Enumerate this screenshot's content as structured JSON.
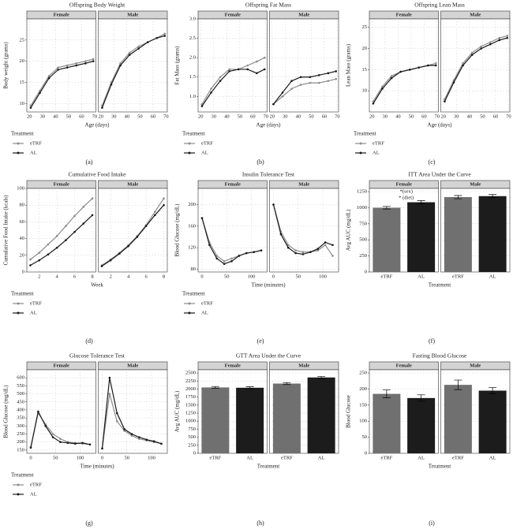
{
  "chart_data": [
    {
      "type": "line",
      "title": "Offspring Body Weight",
      "label": "(a)",
      "xlabel": "Age (days)",
      "ylabel": "Body weight (grams)",
      "legend_title": "Treatment",
      "series": [
        {
          "name": "eTRF",
          "color": "#8c8c8c"
        },
        {
          "name": "AL",
          "color": "#1a1a1a"
        }
      ],
      "x": [
        21,
        28,
        35,
        42,
        49,
        56,
        63,
        69
      ],
      "xlim": [
        18,
        71
      ],
      "xticks": [
        20,
        30,
        40,
        50,
        60,
        70
      ],
      "ylim": [
        8,
        30
      ],
      "yticks": [
        10,
        15,
        20,
        25
      ],
      "facets": [
        {
          "name": "Female",
          "values": [
            [
              9.5,
              13,
              16.5,
              18.5,
              19,
              19.5,
              20,
              20.5
            ],
            [
              9,
              12.5,
              16,
              18,
              18.5,
              19,
              19.5,
              20
            ]
          ]
        },
        {
          "name": "Male",
          "values": [
            [
              9.5,
              15,
              19.5,
              22,
              23.5,
              24.5,
              25.5,
              26.5
            ],
            [
              9,
              14.5,
              19,
              21.5,
              23,
              24.5,
              25.5,
              26
            ]
          ]
        }
      ]
    },
    {
      "type": "line",
      "title": "Offspring Fat Mass",
      "label": "(b)",
      "xlabel": "Age (days)",
      "ylabel": "Fat Mass (grams)",
      "legend_title": "Treatment",
      "series": [
        {
          "name": "eTRF",
          "color": "#8c8c8c"
        },
        {
          "name": "AL",
          "color": "#1a1a1a"
        }
      ],
      "x": [
        21,
        28,
        35,
        42,
        49,
        56,
        63,
        69
      ],
      "xlim": [
        18,
        71
      ],
      "xticks": [
        20,
        30,
        40,
        50,
        60,
        70
      ],
      "ylim": [
        0.6,
        3.0
      ],
      "yticks": [
        {
          "value": 1,
          "label": "1.0"
        },
        1.5,
        {
          "value": 2,
          "label": "2.0"
        },
        2.5,
        {
          "value": 3,
          "label": "3.0"
        }
      ],
      "facets": [
        {
          "name": "Female",
          "values": [
            [
              0.8,
              1.2,
              1.5,
              1.7,
              1.7,
              1.8,
              1.9,
              2.0
            ],
            [
              0.75,
              1.1,
              1.4,
              1.65,
              1.7,
              1.7,
              1.6,
              1.7
            ]
          ]
        },
        {
          "name": "Male",
          "values": [
            [
              0.8,
              1.0,
              1.2,
              1.3,
              1.35,
              1.35,
              1.4,
              1.45
            ],
            [
              0.8,
              1.1,
              1.4,
              1.5,
              1.5,
              1.55,
              1.6,
              1.65
            ]
          ]
        }
      ]
    },
    {
      "type": "line",
      "title": "Offspring Lean Mass",
      "label": "(c)",
      "xlabel": "Age (days)",
      "ylabel": "Lean Mass (grams)",
      "legend_title": "Treatment",
      "series": [
        {
          "name": "eTRF",
          "color": "#8c8c8c"
        },
        {
          "name": "AL",
          "color": "#1a1a1a"
        }
      ],
      "x": [
        21,
        28,
        35,
        42,
        49,
        56,
        63,
        69
      ],
      "xlim": [
        18,
        71
      ],
      "xticks": [
        20,
        30,
        40,
        50,
        60,
        70
      ],
      "ylim": [
        5,
        27
      ],
      "yticks": [
        10,
        15,
        20,
        25
      ],
      "facets": [
        {
          "name": "Female",
          "values": [
            [
              7.5,
              11,
              13.5,
              14.5,
              15,
              15.5,
              16,
              16.5
            ],
            [
              7,
              10.5,
              13,
              14.5,
              15,
              15.5,
              16,
              16
            ]
          ]
        },
        {
          "name": "Male",
          "values": [
            [
              8,
              12.5,
              16.5,
              19,
              20.5,
              21.5,
              22.5,
              23
            ],
            [
              7.5,
              12,
              16,
              18.5,
              20,
              21,
              22,
              22.5
            ]
          ]
        }
      ]
    },
    {
      "type": "line",
      "title": "Cumulative Food Intake",
      "label": "(d)",
      "xlabel": "Week",
      "ylabel": "Cumulative Food Intake (kcals)",
      "legend_title": "Treatment",
      "series": [
        {
          "name": "eTRF",
          "color": "#8c8c8c"
        },
        {
          "name": "AL",
          "color": "#1a1a1a"
        }
      ],
      "x": [
        1,
        2,
        3,
        4,
        5,
        6,
        7,
        8
      ],
      "xlim": [
        0.6,
        8.4
      ],
      "xticks": [
        2,
        4,
        6,
        8
      ],
      "ylim": [
        0,
        100
      ],
      "yticks": [
        0,
        20,
        40,
        60,
        80,
        100
      ],
      "facets": [
        {
          "name": "Female",
          "values": [
            [
              15,
              23,
              33,
              43,
              55,
              67,
              78,
              88
            ],
            [
              8,
              14,
              21,
              29,
              38,
              48,
              58,
              68
            ]
          ]
        },
        {
          "name": "Male",
          "values": [
            [
              8,
              15,
              23,
              32,
              43,
              56,
              72,
              88
            ],
            [
              7,
              14,
              22,
              31,
              42,
              55,
              68,
              80
            ]
          ]
        }
      ]
    },
    {
      "type": "line",
      "title": "Insulin Tolerance Test",
      "label": "(e)",
      "xlabel": "Time (minutes)",
      "ylabel": "Blood Glucose (mg/dL)",
      "legend_title": "Treatment",
      "series": [
        {
          "name": "eTRF",
          "color": "#8c8c8c"
        },
        {
          "name": "AL",
          "color": "#1a1a1a"
        }
      ],
      "x": [
        0,
        15,
        30,
        45,
        60,
        75,
        90,
        105,
        120
      ],
      "xlim": [
        -8,
        132
      ],
      "xticks": [
        0,
        50,
        100
      ],
      "ylim": [
        75,
        230
      ],
      "yticks": [
        80,
        120,
        160,
        200
      ],
      "facets": [
        {
          "name": "Female",
          "values": [
            [
              175,
              130,
              105,
              95,
              100,
              105,
              110,
              112,
              115
            ],
            [
              175,
              125,
              100,
              90,
              95,
              105,
              110,
              112,
              115
            ]
          ]
        },
        {
          "name": "Male",
          "values": [
            [
              200,
              150,
              125,
              115,
              112,
              112,
              115,
              125,
              105
            ],
            [
              200,
              145,
              120,
              110,
              108,
              112,
              118,
              130,
              125
            ]
          ]
        }
      ]
    },
    {
      "type": "bar",
      "title": "ITT Area Under the Curve",
      "label": "(f)",
      "xlabel": "Treatment",
      "ylabel": "Avg AUC (mg/dL)",
      "categories": [
        "eTRF",
        "AL"
      ],
      "colors": [
        "#707070",
        "#1c1c1c"
      ],
      "annotations": [
        "*(sex)",
        "* (diet)"
      ],
      "ylim": [
        0,
        1300
      ],
      "yticks": [
        0,
        250,
        500,
        750,
        1000,
        1250
      ],
      "facets": [
        {
          "name": "Female",
          "values": [
            1000,
            1085
          ],
          "errors": [
            20,
            25
          ]
        },
        {
          "name": "Male",
          "values": [
            1165,
            1180
          ],
          "errors": [
            25,
            25
          ]
        }
      ]
    },
    {
      "type": "line",
      "title": "Glucose Tolerance Test",
      "label": "(g)",
      "xlabel": "Time (minutes)",
      "ylabel": "Blood Glucose (mg/dL)",
      "legend_title": "Treatment",
      "series": [
        {
          "name": "eTRF",
          "color": "#8c8c8c"
        },
        {
          "name": "AL",
          "color": "#1a1a1a"
        }
      ],
      "x": [
        0,
        15,
        30,
        45,
        60,
        75,
        90,
        105,
        120
      ],
      "xlim": [
        -8,
        132
      ],
      "xticks": [
        0,
        50,
        100
      ],
      "ylim": [
        130,
        650
      ],
      "yticks": [
        150,
        200,
        250,
        300,
        350,
        400,
        450,
        500,
        550,
        600
      ],
      "facets": [
        {
          "name": "Female",
          "values": [
            [
              170,
              380,
              310,
              250,
              220,
              200,
              195,
              190,
              185
            ],
            [
              165,
              390,
              300,
              230,
              200,
              195,
              190,
              195,
              185
            ]
          ]
        },
        {
          "name": "Male",
          "values": [
            [
              160,
              500,
              330,
              270,
              240,
              220,
              210,
              200,
              190
            ],
            [
              160,
              600,
              380,
              280,
              250,
              230,
              215,
              205,
              190
            ]
          ]
        }
      ]
    },
    {
      "type": "bar",
      "title": "GTT Area Under the Curve",
      "label": "(h)",
      "xlabel": "Treatment",
      "ylabel": "Avg AUC (mg/dL)",
      "categories": [
        "eTRF",
        "AL"
      ],
      "colors": [
        "#707070",
        "#1c1c1c"
      ],
      "ylim": [
        0,
        2600
      ],
      "yticks": [
        0,
        250,
        500,
        750,
        1000,
        1250,
        1500,
        1750,
        2000,
        2250,
        2500
      ],
      "facets": [
        {
          "name": "Female",
          "values": [
            2050,
            2040
          ],
          "errors": [
            30,
            30
          ]
        },
        {
          "name": "Male",
          "values": [
            2170,
            2360
          ],
          "errors": [
            30,
            30
          ]
        }
      ]
    },
    {
      "type": "bar",
      "title": "Fasting Blood Glucose",
      "label": "(i)",
      "xlabel": "Treatment",
      "ylabel": "Blood Glucose",
      "categories": [
        "eTRF",
        "AL"
      ],
      "colors": [
        "#707070",
        "#1c1c1c"
      ],
      "ylim": [
        0,
        260
      ],
      "yticks": [
        0,
        50,
        100,
        150,
        200,
        250
      ],
      "facets": [
        {
          "name": "Female",
          "values": [
            185,
            172
          ],
          "errors": [
            12,
            10
          ]
        },
        {
          "name": "Male",
          "values": [
            213,
            195
          ],
          "errors": [
            15,
            10
          ]
        }
      ]
    }
  ]
}
